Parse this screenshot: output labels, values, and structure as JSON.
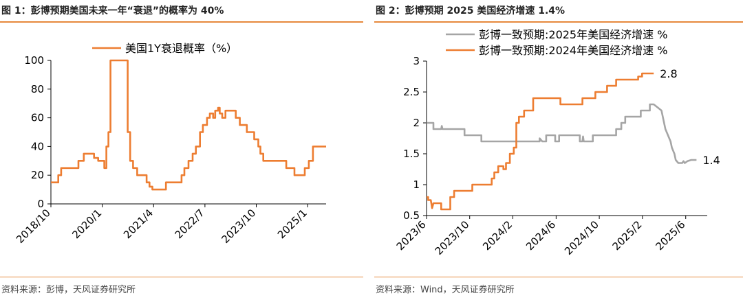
{
  "colors": {
    "accent": "#e6893c",
    "orange": "#ed7d31",
    "gray": "#a5a5a5"
  },
  "fig1": {
    "title": "图 1：彭博预期美国未来一年“衰退”的概率为 40%",
    "source": "资料来源：彭博，天风证券研究所",
    "chart_data": {
      "type": "line",
      "title": "",
      "xlabel": "",
      "ylabel": "",
      "ylim": [
        0,
        100
      ],
      "yticks": [
        0,
        20,
        40,
        60,
        80,
        100
      ],
      "xlim": [
        2018.75,
        2025.45
      ],
      "xticks": [
        {
          "label": "2018/10",
          "x": 2018.75
        },
        {
          "label": "2020/1",
          "x": 2020.0
        },
        {
          "label": "2021/4",
          "x": 2021.25
        },
        {
          "label": "2022/7",
          "x": 2022.5
        },
        {
          "label": "2023/10",
          "x": 2023.75
        },
        {
          "label": "2025/1",
          "x": 2025.0
        }
      ],
      "legend_position": "top-center",
      "series": [
        {
          "name": "美国1Y衰退概率（%）",
          "color": "#ed7d31",
          "points": [
            [
              2018.75,
              15
            ],
            [
              2018.93,
              15
            ],
            [
              2018.93,
              20
            ],
            [
              2019.0,
              20
            ],
            [
              2019.0,
              25
            ],
            [
              2019.42,
              25
            ],
            [
              2019.42,
              30
            ],
            [
              2019.55,
              30
            ],
            [
              2019.55,
              35
            ],
            [
              2019.8,
              35
            ],
            [
              2019.8,
              32
            ],
            [
              2019.9,
              32
            ],
            [
              2019.9,
              30
            ],
            [
              2020.05,
              30
            ],
            [
              2020.05,
              25
            ],
            [
              2020.1,
              25
            ],
            [
              2020.1,
              40
            ],
            [
              2020.15,
              40
            ],
            [
              2020.15,
              50
            ],
            [
              2020.2,
              50
            ],
            [
              2020.2,
              100
            ],
            [
              2020.62,
              100
            ],
            [
              2020.62,
              50
            ],
            [
              2020.68,
              50
            ],
            [
              2020.68,
              30
            ],
            [
              2020.75,
              30
            ],
            [
              2020.75,
              25
            ],
            [
              2020.85,
              25
            ],
            [
              2020.85,
              20
            ],
            [
              2021.08,
              20
            ],
            [
              2021.08,
              15
            ],
            [
              2021.15,
              15
            ],
            [
              2021.15,
              12
            ],
            [
              2021.22,
              12
            ],
            [
              2021.22,
              10
            ],
            [
              2021.55,
              10
            ],
            [
              2021.55,
              15
            ],
            [
              2021.93,
              15
            ],
            [
              2021.93,
              20
            ],
            [
              2022.0,
              20
            ],
            [
              2022.0,
              25
            ],
            [
              2022.1,
              25
            ],
            [
              2022.1,
              30
            ],
            [
              2022.2,
              30
            ],
            [
              2022.2,
              35
            ],
            [
              2022.28,
              35
            ],
            [
              2022.28,
              40
            ],
            [
              2022.38,
              40
            ],
            [
              2022.38,
              50
            ],
            [
              2022.45,
              50
            ],
            [
              2022.45,
              55
            ],
            [
              2022.55,
              55
            ],
            [
              2022.55,
              60
            ],
            [
              2022.62,
              60
            ],
            [
              2022.62,
              63
            ],
            [
              2022.7,
              63
            ],
            [
              2022.7,
              60
            ],
            [
              2022.75,
              60
            ],
            [
              2022.75,
              65
            ],
            [
              2022.82,
              65
            ],
            [
              2022.82,
              67
            ],
            [
              2022.86,
              67
            ],
            [
              2022.86,
              63
            ],
            [
              2022.92,
              63
            ],
            [
              2022.92,
              60
            ],
            [
              2023.0,
              60
            ],
            [
              2023.0,
              65
            ],
            [
              2023.25,
              65
            ],
            [
              2023.25,
              60
            ],
            [
              2023.35,
              60
            ],
            [
              2023.35,
              55
            ],
            [
              2023.52,
              55
            ],
            [
              2023.52,
              50
            ],
            [
              2023.7,
              50
            ],
            [
              2023.7,
              45
            ],
            [
              2023.8,
              45
            ],
            [
              2023.8,
              40
            ],
            [
              2023.85,
              40
            ],
            [
              2023.85,
              35
            ],
            [
              2023.92,
              35
            ],
            [
              2023.92,
              30
            ],
            [
              2024.48,
              30
            ],
            [
              2024.48,
              25
            ],
            [
              2024.68,
              25
            ],
            [
              2024.68,
              20
            ],
            [
              2024.93,
              20
            ],
            [
              2024.93,
              25
            ],
            [
              2025.03,
              25
            ],
            [
              2025.03,
              30
            ],
            [
              2025.13,
              30
            ],
            [
              2025.13,
              40
            ],
            [
              2025.45,
              40
            ]
          ]
        }
      ]
    }
  },
  "fig2": {
    "title": "图 2：彭博预期 2025 美国经济增速 1.4%",
    "source": "资料来源：Wind，天风证券研究所",
    "chart_data": {
      "type": "line",
      "title": "",
      "xlabel": "",
      "ylabel": "",
      "ylim": [
        0.5,
        3
      ],
      "yticks": [
        0.5,
        1,
        1.5,
        2,
        2.5,
        3
      ],
      "ytick_labels": [
        "0.5",
        "1",
        "1.5",
        "2",
        "2.5",
        "3"
      ],
      "xlim": [
        2023.417,
        2025.583
      ],
      "xticks": [
        {
          "label": "2023/6",
          "x": 2023.417
        },
        {
          "label": "2023/10",
          "x": 2023.75
        },
        {
          "label": "2024/2",
          "x": 2024.083
        },
        {
          "label": "2024/6",
          "x": 2024.417
        },
        {
          "label": "2024/10",
          "x": 2024.75
        },
        {
          "label": "2025/2",
          "x": 2025.083
        },
        {
          "label": "2025/6",
          "x": 2025.417
        }
      ],
      "legend_position": "top",
      "series": [
        {
          "name": "彭博一致预期:2025年美国经济增速 %",
          "color": "#a5a5a5",
          "end_label": "1.4",
          "points": [
            [
              2023.417,
              2.0
            ],
            [
              2023.47,
              2.0
            ],
            [
              2023.47,
              1.9
            ],
            [
              2023.53,
              1.9
            ],
            [
              2023.535,
              1.95
            ],
            [
              2023.54,
              1.9
            ],
            [
              2023.71,
              1.9
            ],
            [
              2023.71,
              1.8
            ],
            [
              2023.84,
              1.8
            ],
            [
              2023.84,
              1.7
            ],
            [
              2024.29,
              1.7
            ],
            [
              2024.29,
              1.75
            ],
            [
              2024.31,
              1.7
            ],
            [
              2024.34,
              1.7
            ],
            [
              2024.34,
              1.8
            ],
            [
              2024.41,
              1.8
            ],
            [
              2024.41,
              1.7
            ],
            [
              2024.44,
              1.7
            ],
            [
              2024.44,
              1.8
            ],
            [
              2024.6,
              1.8
            ],
            [
              2024.6,
              1.7
            ],
            [
              2024.62,
              1.7
            ],
            [
              2024.625,
              1.78
            ],
            [
              2024.63,
              1.7
            ],
            [
              2024.7,
              1.7
            ],
            [
              2024.7,
              1.8
            ],
            [
              2024.88,
              1.8
            ],
            [
              2024.88,
              1.9
            ],
            [
              2024.92,
              1.9
            ],
            [
              2024.92,
              2.0
            ],
            [
              2024.95,
              2.0
            ],
            [
              2024.95,
              2.1
            ],
            [
              2025.07,
              2.1
            ],
            [
              2025.07,
              2.2
            ],
            [
              2025.14,
              2.2
            ],
            [
              2025.14,
              2.3
            ],
            [
              2025.17,
              2.3
            ],
            [
              2025.2,
              2.25
            ],
            [
              2025.23,
              2.2
            ],
            [
              2025.26,
              1.9
            ],
            [
              2025.3,
              1.7
            ],
            [
              2025.31,
              1.6
            ],
            [
              2025.33,
              1.5
            ],
            [
              2025.34,
              1.4
            ],
            [
              2025.36,
              1.35
            ],
            [
              2025.39,
              1.35
            ],
            [
              2025.4,
              1.38
            ],
            [
              2025.41,
              1.35
            ],
            [
              2025.43,
              1.38
            ],
            [
              2025.46,
              1.4
            ],
            [
              2025.5,
              1.4
            ]
          ]
        },
        {
          "name": "彭博一致预期:2024年美国经济增速 %",
          "color": "#ed7d31",
          "end_label": "2.8",
          "points": [
            [
              2023.417,
              0.8
            ],
            [
              2023.43,
              0.8
            ],
            [
              2023.43,
              0.75
            ],
            [
              2023.45,
              0.75
            ],
            [
              2023.46,
              0.62
            ],
            [
              2023.47,
              0.7
            ],
            [
              2023.53,
              0.7
            ],
            [
              2023.53,
              0.6
            ],
            [
              2023.6,
              0.6
            ],
            [
              2023.6,
              0.8
            ],
            [
              2023.63,
              0.8
            ],
            [
              2023.63,
              0.9
            ],
            [
              2023.77,
              0.9
            ],
            [
              2023.77,
              1.0
            ],
            [
              2023.92,
              1.0
            ],
            [
              2023.92,
              1.1
            ],
            [
              2023.94,
              1.1
            ],
            [
              2023.94,
              1.2
            ],
            [
              2023.97,
              1.2
            ],
            [
              2023.97,
              1.3
            ],
            [
              2024.01,
              1.3
            ],
            [
              2024.01,
              1.25
            ],
            [
              2024.03,
              1.25
            ],
            [
              2024.03,
              1.35
            ],
            [
              2024.06,
              1.35
            ],
            [
              2024.06,
              1.5
            ],
            [
              2024.09,
              1.5
            ],
            [
              2024.09,
              1.6
            ],
            [
              2024.11,
              1.6
            ],
            [
              2024.11,
              2.0
            ],
            [
              2024.13,
              2.0
            ],
            [
              2024.13,
              2.1
            ],
            [
              2024.17,
              2.1
            ],
            [
              2024.17,
              2.2
            ],
            [
              2024.24,
              2.2
            ],
            [
              2024.24,
              2.4
            ],
            [
              2024.45,
              2.4
            ],
            [
              2024.45,
              2.3
            ],
            [
              2024.62,
              2.3
            ],
            [
              2024.62,
              2.4
            ],
            [
              2024.72,
              2.4
            ],
            [
              2024.72,
              2.5
            ],
            [
              2024.81,
              2.5
            ],
            [
              2024.81,
              2.6
            ],
            [
              2024.88,
              2.6
            ],
            [
              2024.88,
              2.7
            ],
            [
              2025.05,
              2.7
            ],
            [
              2025.05,
              2.75
            ],
            [
              2025.08,
              2.75
            ],
            [
              2025.08,
              2.8
            ],
            [
              2025.17,
              2.8
            ]
          ]
        }
      ]
    }
  }
}
